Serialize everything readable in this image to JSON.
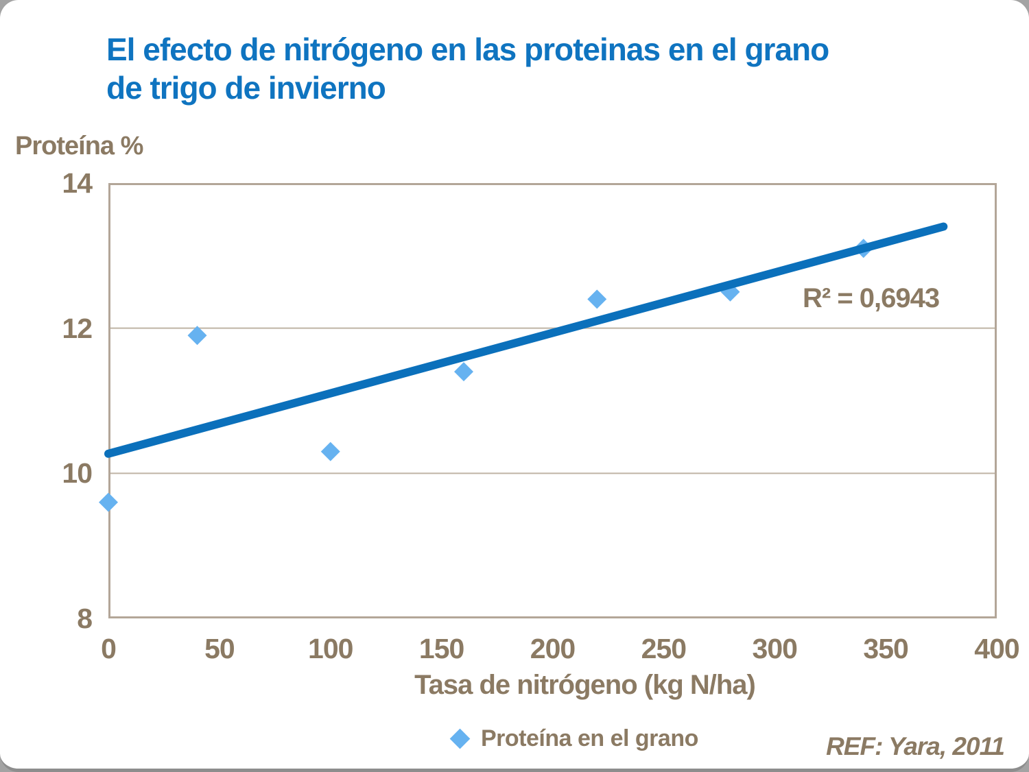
{
  "slide": {
    "title": "El efecto de nitrógeno en las proteinas en el grano de trigo de invierno",
    "ref": "REF: Yara, 2011"
  },
  "colors": {
    "title_blue": "#0f74c0",
    "text_brown": "#8b7a63",
    "marker_blue": "#66b2f0",
    "trendline_blue": "#0b70bb",
    "plot_border": "#b3a698",
    "gridline": "#bfb4a5",
    "slide_edge_gray": "#8d8d8d"
  },
  "chart_data": {
    "type": "scatter",
    "title": "El efecto de nitrógeno en las proteinas en el grano de trigo de invierno",
    "xlabel": "Tasa de nitrógeno (kg N/ha)",
    "ylabel": "Proteína %",
    "series": [
      {
        "name": "Proteína en el grano",
        "x": [
          0,
          40,
          100,
          160,
          220,
          280,
          340
        ],
        "y": [
          9.6,
          11.9,
          10.3,
          11.4,
          12.4,
          12.5,
          13.1
        ]
      }
    ],
    "trendline": {
      "x1": 0,
      "y1": 10.27,
      "x2": 376,
      "y2": 13.4
    },
    "r_squared": 0.6943,
    "r_squared_label": "R² = 0,6943",
    "xlim": [
      0,
      400
    ],
    "ylim": [
      8,
      14
    ],
    "x_ticks": [
      0,
      50,
      100,
      150,
      200,
      250,
      300,
      350,
      400
    ],
    "y_ticks": [
      14,
      12,
      10,
      8
    ],
    "gridlines_y": [
      10,
      12
    ],
    "grid": "horizontal-only",
    "legend": {
      "label": "Proteína en el grano",
      "position": "bottom-center"
    }
  }
}
